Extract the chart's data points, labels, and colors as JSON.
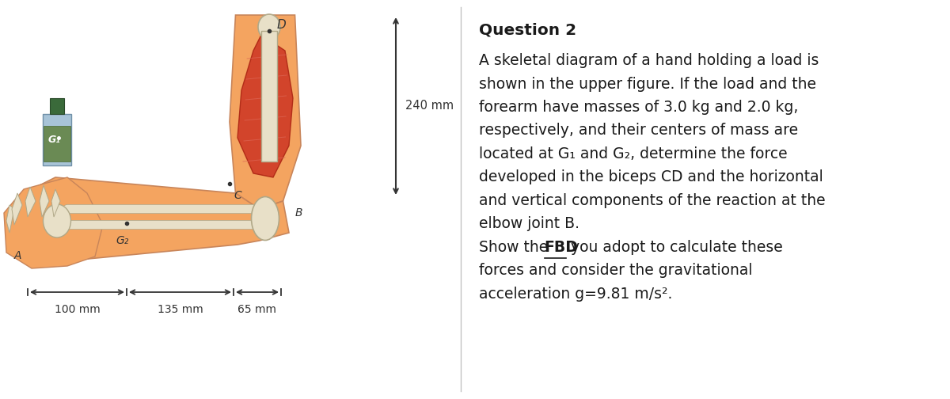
{
  "title": "Question 2",
  "body_lines": [
    "A skeletal diagram of a hand holding a load is",
    "shown in the upper figure. If the load and the",
    "forearm have masses of 3.0 kg and 2.0 kg,",
    "respectively, and their centers of mass are",
    "located at G₁ and G₂, determine the force",
    "developed in the biceps CD and the horizontal",
    "and vertical components of the reaction at the",
    "elbow joint B.",
    "Show the FBD you adopt to calculate these",
    "forces and consider the gravitational",
    "acceleration g=9.81 m/s²."
  ],
  "fbd_line_index": 8,
  "fbd_prefix": "Show the ",
  "fbd_word": "FBD",
  "fbd_suffix": " you adopt to calculate these",
  "dim_240": "240 mm",
  "dim_100": "100 mm",
  "dim_135": "135 mm",
  "dim_65": "65 mm",
  "label_D": "D",
  "label_C": "C",
  "label_B": "B",
  "label_A": "A",
  "label_G1": "G₁",
  "label_G2": "G₂",
  "bg_color": "#ffffff",
  "text_color": "#1a1a1a",
  "divider_color": "#888888",
  "skin_color": "#f4a460",
  "bone_color": "#e8e0c8",
  "muscle_color": "#cc3322",
  "text_fontsize": 13.5,
  "title_fontsize": 14.5
}
